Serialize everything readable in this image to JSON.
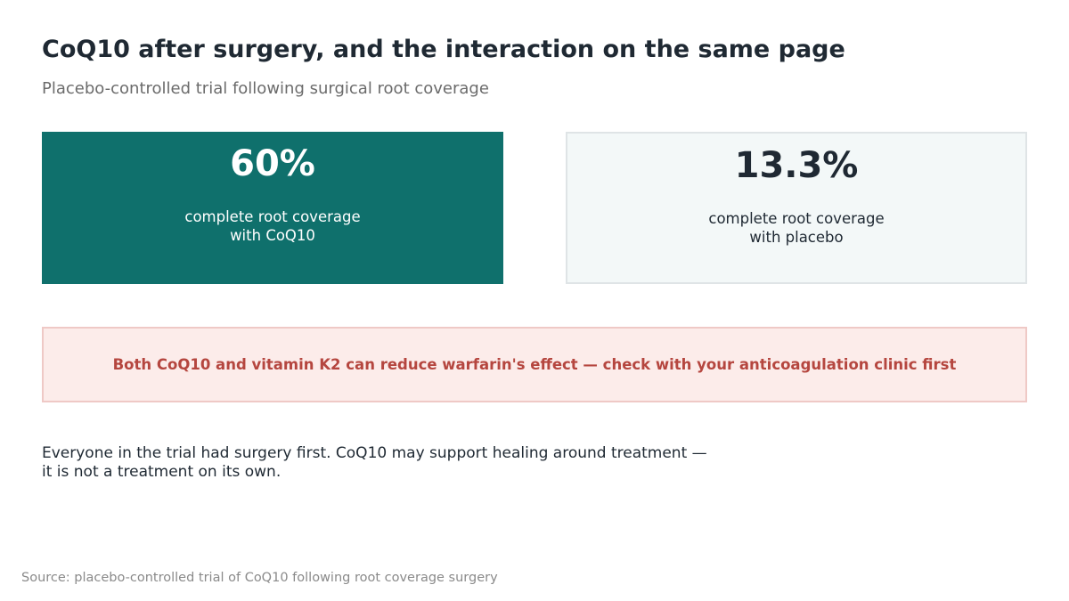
{
  "header": {
    "title": "CoQ10 after surgery, and the interaction on the same page",
    "subtitle": "Placebo-controlled trial following surgical root coverage"
  },
  "stats": [
    {
      "value": "60%",
      "label": "complete root coverage\nwith CoQ10",
      "color": "#0f706c"
    },
    {
      "value": "13.3%",
      "label": "complete root coverage\nwith placebo",
      "color": "#f3f8f8"
    }
  ],
  "warning": {
    "text": "Both CoQ10 and vitamin K2 can reduce warfarin's effect — check with your anticoagulation clinic first",
    "color": "#b5463f"
  },
  "note": {
    "text": "Everyone in the trial had surgery first. CoQ10 may support healing around treatment —\nit is not a treatment on its own."
  },
  "footer": {
    "source": "Source: placebo-controlled trial of CoQ10 following root coverage surgery"
  }
}
